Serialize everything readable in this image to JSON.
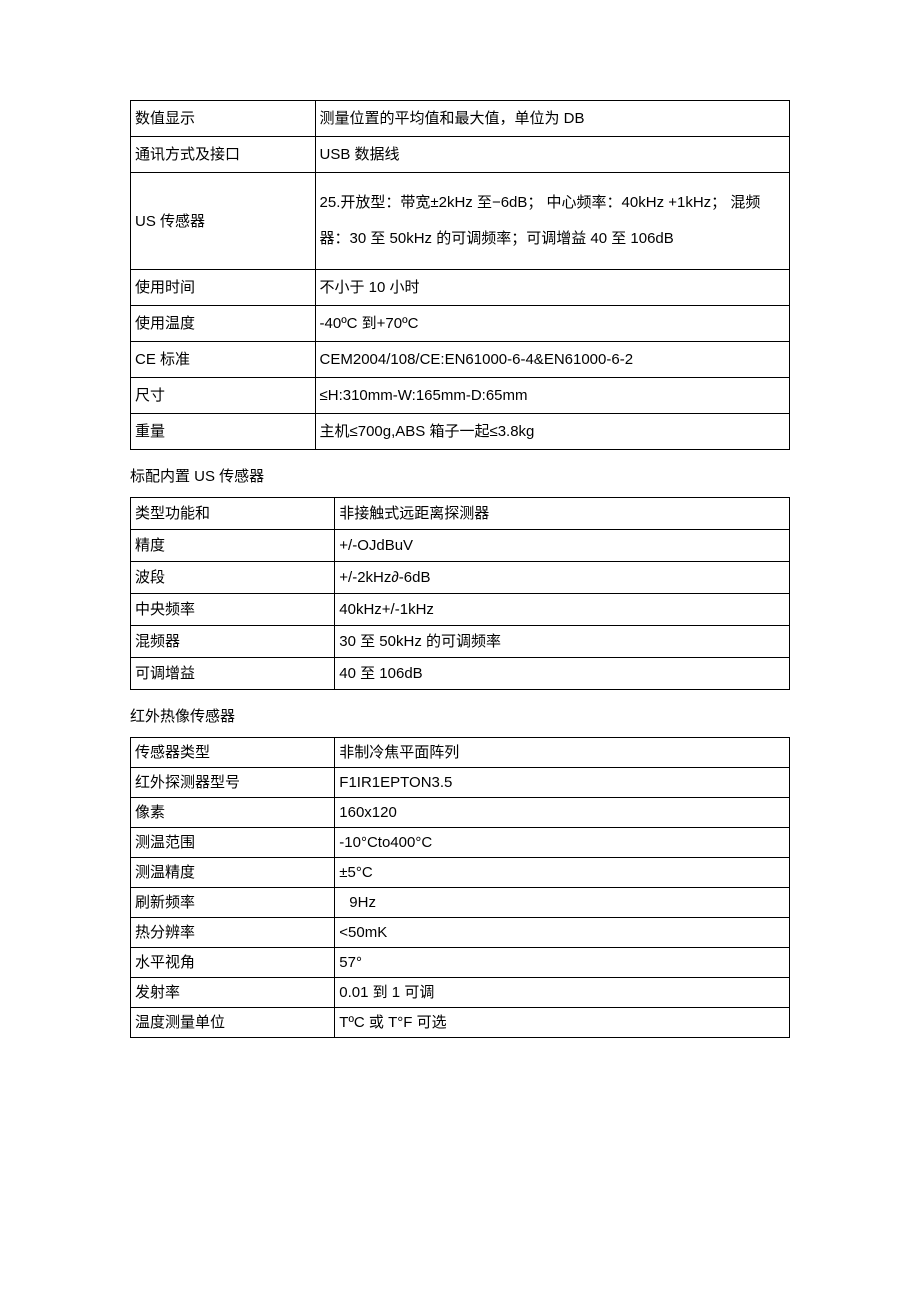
{
  "table1": {
    "col_widths": [
      "28%",
      "72%"
    ],
    "rows": [
      {
        "label": "数值显示",
        "value": "测量位置的平均值和最大值，单位为 DB"
      },
      {
        "label": "通讯方式及接口",
        "value": "USB 数据线"
      },
      {
        "label": "US 传感器",
        "value": "25.开放型：带宽±2kHz 至−6dB； 中心频率：40kHz +1kHz； 混频器：30 至 50kHz 的可调频率；可调增益 40 至 106dB",
        "multiline": true
      },
      {
        "label": "使用时间",
        "value": "不小于 10 小时"
      },
      {
        "label": "使用温度",
        "value": "-40ºC 到+70ºC"
      },
      {
        "label": "CE 标准",
        "value": "CEM2004/108/CE:EN61000-6-4&EN61000-6-2"
      },
      {
        "label": "尺寸",
        "value": "≤H:310mm-W:165mm-D:65mm"
      },
      {
        "label": "重量",
        "value": "主机≤700g,ABS 箱子一起≤3.8kg"
      }
    ]
  },
  "section2_title": "标配内置 US 传感器",
  "table2": {
    "col_widths": [
      "31%",
      "69%"
    ],
    "rows": [
      {
        "label": "类型功能和",
        "value": "非接触式远距离探测器"
      },
      {
        "label": "精度",
        "value": "+/-OJdBuV"
      },
      {
        "label": "波段",
        "value": "+/-2kHz∂-6dB"
      },
      {
        "label": "中央频率",
        "value": "40kHz+/-1kHz"
      },
      {
        "label": "混频器",
        "value": "30 至 50kHz 的可调频率"
      },
      {
        "label": "可调增益",
        "value": "40 至 106dB"
      }
    ]
  },
  "section3_title": "红外热像传感器",
  "table3": {
    "col_widths": [
      "31%",
      "69%"
    ],
    "rows": [
      {
        "label": "传感器类型",
        "value": "非制冷焦平面阵列"
      },
      {
        "label": "红外探测器型号",
        "value": "F1IR1EPTON3.5"
      },
      {
        "label": "像素",
        "value": "160x120"
      },
      {
        "label": "测温范围",
        "value": "-10°Cto400°C"
      },
      {
        "label": "测温精度",
        "value": "±5°C"
      },
      {
        "label": "刷新频率",
        "value": "9Hz",
        "indent": true
      },
      {
        "label": "热分辨率",
        "value": "<50mK"
      },
      {
        "label": "水平视角",
        "value": "57°"
      },
      {
        "label": "发射率",
        "value": "0.01 到 1 可调"
      },
      {
        "label": "温度测量单位",
        "value": "TºC 或 T°F 可选"
      }
    ]
  }
}
